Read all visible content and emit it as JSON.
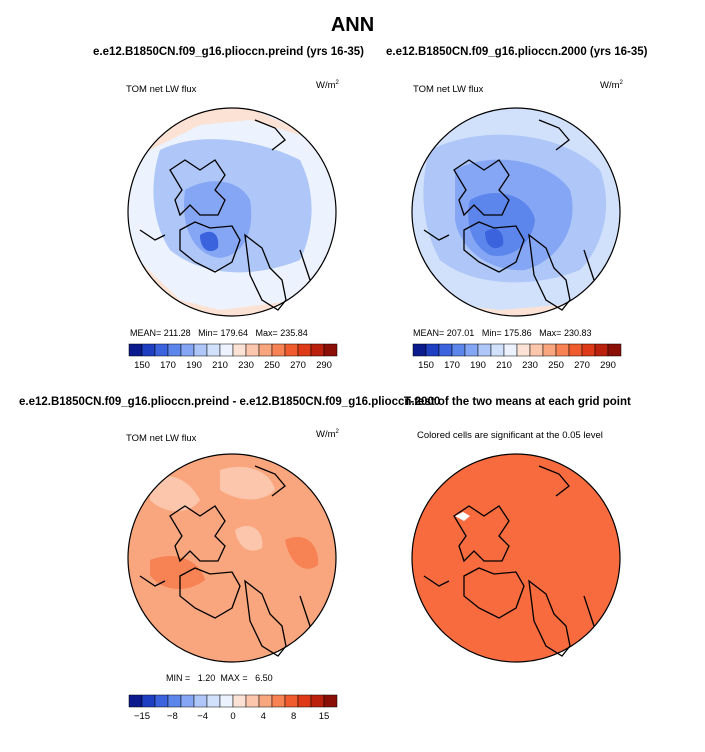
{
  "page": {
    "title": "ANN"
  },
  "colors": {
    "absolute_scale": [
      "#0b1a8c",
      "#1f3fc2",
      "#3b63dd",
      "#5d86ec",
      "#84a6f4",
      "#aec6f8",
      "#d1e1fb",
      "#ecf2fe",
      "#fce2d4",
      "#fbc6ab",
      "#f9a67f",
      "#f78253",
      "#f05c2e",
      "#de3a17",
      "#bb200c",
      "#8a0f06"
    ],
    "difference_scale": [
      "#0b1a8c",
      "#1f3fc2",
      "#3b63dd",
      "#5d86ec",
      "#84a6f4",
      "#aec6f8",
      "#d1e1fb",
      "#ecf2fe",
      "#fce2d4",
      "#fbc6ab",
      "#f9a67f",
      "#f78253",
      "#f05c2e",
      "#de3a17",
      "#bb200c",
      "#8a0f06"
    ],
    "land_outline": "#000000",
    "significance_fill": "#f76b3e"
  },
  "panels": {
    "preind": {
      "case_title": "e.e12.B1850CN.f09_g16.plioccn.preind (yrs 16-35)",
      "variable": "TOM net LW flux",
      "units": "W/m",
      "units_sup": "2",
      "mean_label": "MEAN=",
      "mean_value": "211.28",
      "min_label": "Min=",
      "min_value": "179.64",
      "max_label": "Max=",
      "max_value": "235.84",
      "colorbar_ticks": [
        "150",
        "170",
        "190",
        "210",
        "230",
        "250",
        "270",
        "290"
      ]
    },
    "plio2000": {
      "case_title": "e.e12.B1850CN.f09_g16.plioccn.2000 (yrs 16-35)",
      "variable": "TOM net LW flux",
      "units": "W/m",
      "units_sup": "2",
      "mean_label": "MEAN=",
      "mean_value": "207.01",
      "min_label": "Min=",
      "min_value": "175.86",
      "max_label": "Max=",
      "max_value": "230.83",
      "colorbar_ticks": [
        "150",
        "170",
        "190",
        "210",
        "230",
        "250",
        "270",
        "290"
      ]
    },
    "difference": {
      "case_title": "e.e12.B1850CN.f09_g16.plioccn.preind - e.e12.B1850CN.f09_g16.plioccn.2000",
      "variable": "TOM net LW flux",
      "units": "W/m",
      "units_sup": "2",
      "min_label": "MIN =",
      "min_value": "1.20",
      "max_label": "MAX =",
      "max_value": "6.50",
      "colorbar_ticks": [
        "−15",
        "−8",
        "−4",
        "0",
        "4",
        "8",
        "15"
      ]
    },
    "ttest": {
      "case_title": "T-test of the two means at each grid point",
      "subtitle": "Colored cells are significant at the 0.05 level"
    }
  },
  "chart_data": [
    {
      "type": "heatmap",
      "projection": "north polar stereographic",
      "title": "e.e12.B1850CN.f09_g16.plioccn.preind (yrs 16-35)",
      "variable": "TOM net LW flux",
      "units": "W/m2",
      "mean": 211.28,
      "min": 179.64,
      "max": 235.84,
      "levels": [
        150,
        170,
        190,
        210,
        230,
        250,
        270,
        290
      ]
    },
    {
      "type": "heatmap",
      "projection": "north polar stereographic",
      "title": "e.e12.B1850CN.f09_g16.plioccn.2000 (yrs 16-35)",
      "variable": "TOM net LW flux",
      "units": "W/m2",
      "mean": 207.01,
      "min": 175.86,
      "max": 230.83,
      "levels": [
        150,
        170,
        190,
        210,
        230,
        250,
        270,
        290
      ]
    },
    {
      "type": "heatmap",
      "projection": "north polar stereographic",
      "title": "e.e12.B1850CN.f09_g16.plioccn.preind - e.e12.B1850CN.f09_g16.plioccn.2000",
      "variable": "TOM net LW flux",
      "units": "W/m2",
      "min": 1.2,
      "max": 6.5,
      "levels": [
        -15,
        -8,
        -4,
        0,
        4,
        8,
        15
      ]
    },
    {
      "type": "heatmap",
      "projection": "north polar stereographic",
      "title": "T-test of the two means at each grid point",
      "subtitle": "Colored cells are significant at the 0.05 level",
      "significance_level": 0.05
    }
  ]
}
